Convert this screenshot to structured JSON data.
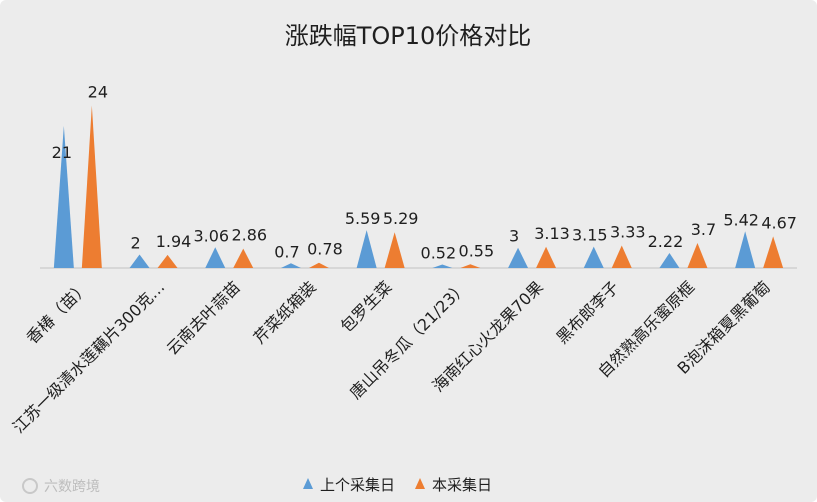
{
  "chart_data": {
    "type": "area",
    "title": "涨跌幅TOP10价格对比",
    "categories": [
      "香椿（苗）",
      "江苏一级清水莲藕片300克…",
      "云南去叶蒜苗",
      "芹菜纸箱装",
      "包罗生菜",
      "唐山吊冬瓜（21/23）",
      "海南红心火龙果70果",
      "黑布郎李子",
      "自然熟高乐蜜原框",
      "B泡沫箱夏黑葡萄"
    ],
    "series": [
      {
        "name": "上个采集日",
        "values": [
          21,
          2,
          3.06,
          0.7,
          5.59,
          0.52,
          3,
          3.15,
          2.22,
          5.42
        ],
        "color": "#5b9bd5"
      },
      {
        "name": "本采集日",
        "values": [
          24,
          1.94,
          2.86,
          0.78,
          5.29,
          0.55,
          3.13,
          3.33,
          3.7,
          4.67
        ],
        "color": "#ed7d31"
      }
    ],
    "data_labels": [
      [
        "21",
        "2",
        "3.06",
        "0.7",
        "5.59",
        "0.52",
        "3",
        "3.15",
        "2.22",
        "5.42"
      ],
      [
        "24",
        "1.94",
        "2.86",
        "0.78",
        "5.29",
        "0.55",
        "3.13",
        "3.33",
        "3.7",
        "4.67"
      ]
    ],
    "ylim": [
      0,
      26
    ],
    "grid": false,
    "legend_position": "bottom"
  },
  "watermark": "六数跨境"
}
